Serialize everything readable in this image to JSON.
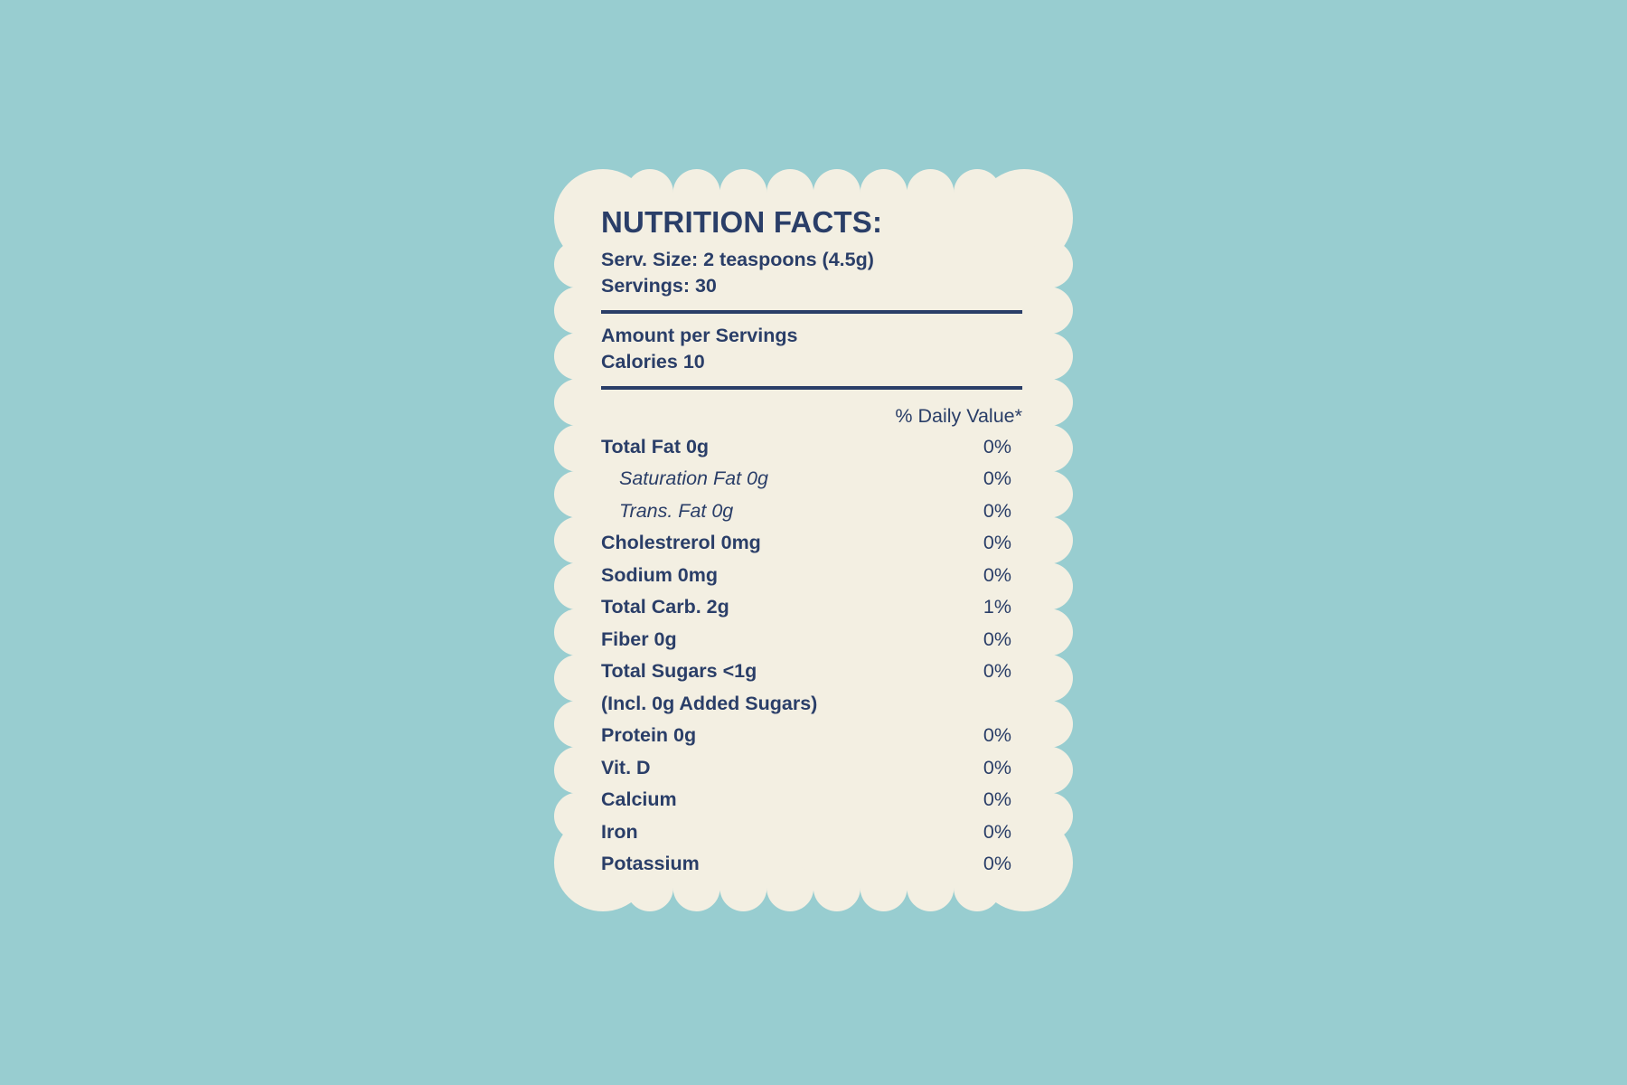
{
  "colors": {
    "background": "#98cdd0",
    "card": "#f3efe2",
    "text": "#2a3e68"
  },
  "label": {
    "title": "NUTRITION FACTS:",
    "serving_size": "Serv. Size: 2 teaspoons (4.5g)",
    "servings": "Servings: 30",
    "amount_per": "Amount per Servings",
    "calories": "Calories 10",
    "daily_value_header": "% Daily Value*",
    "rows": [
      {
        "label": "Total Fat 0g",
        "value": "0%",
        "style": "bold"
      },
      {
        "label": "Saturation Fat 0g",
        "value": "0%",
        "style": "italic-indent"
      },
      {
        "label": "Trans. Fat 0g",
        "value": "0%",
        "style": "italic-indent"
      },
      {
        "label": "Cholestrerol 0mg",
        "value": "0%",
        "style": "bold"
      },
      {
        "label": "Sodium 0mg",
        "value": "0%",
        "style": "bold"
      },
      {
        "label": "Total Carb. 2g",
        "value": "1%",
        "style": "bold"
      },
      {
        "label": "Fiber 0g",
        "value": "0%",
        "style": "bold"
      },
      {
        "label": "Total Sugars <1g",
        "value": "0%",
        "style": "bold"
      },
      {
        "label": "(Incl. 0g Added Sugars)",
        "value": "",
        "style": "bold"
      },
      {
        "label": "Protein 0g",
        "value": "0%",
        "style": "bold"
      },
      {
        "label": "Vit. D",
        "value": "0%",
        "style": "bold"
      },
      {
        "label": "Calcium",
        "value": "0%",
        "style": "bold"
      },
      {
        "label": "Iron",
        "value": "0%",
        "style": "bold"
      },
      {
        "label": "Potassium",
        "value": "0%",
        "style": "bold"
      }
    ]
  }
}
